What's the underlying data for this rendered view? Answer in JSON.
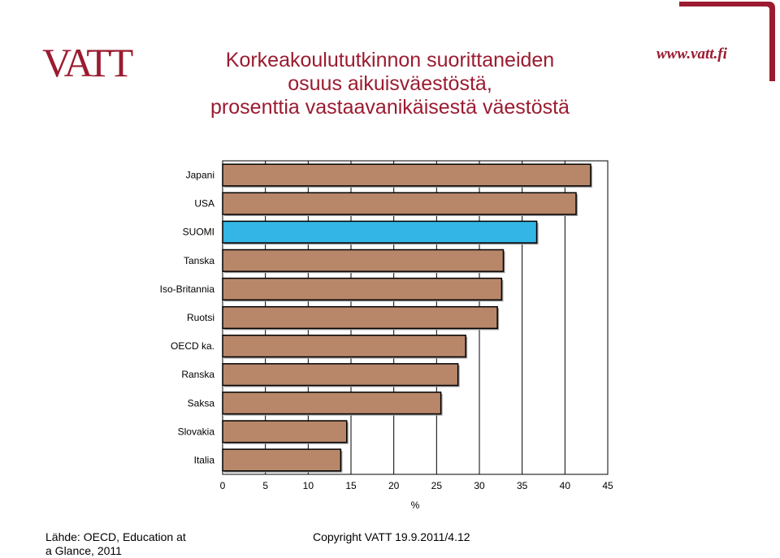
{
  "header": {
    "logo_text": "VATT",
    "title_lines": [
      "Korkeakoulututkinnon suorittaneiden",
      "osuus aikuisväestöstä,",
      "prosenttia vastaavanikäisestä väestöstä"
    ],
    "website": "www.vatt.fi"
  },
  "footer": {
    "source_line1": "Lähde: OECD, Education at",
    "source_line2": "a Glance, 2011",
    "copyright": "Copyright VATT 19.9.2011/4.12"
  },
  "colors": {
    "brand": "#9b1b30",
    "bar": "#b8876a",
    "highlight": "#33b5e5"
  },
  "chart_data": {
    "type": "bar",
    "orientation": "horizontal",
    "categories": [
      "Japani",
      "USA",
      "SUOMI",
      "Tanska",
      "Iso-Britannia",
      "Ruotsi",
      "OECD ka.",
      "Ranska",
      "Saksa",
      "Slovakia",
      "Italia"
    ],
    "values": [
      43,
      41.3,
      36.7,
      32.8,
      32.6,
      32.1,
      28.4,
      27.5,
      25.5,
      14.5,
      13.8
    ],
    "highlight_category": "SUOMI",
    "xlabel": "%",
    "ylabel": "",
    "xlim": [
      0,
      45
    ],
    "xticks": [
      0,
      5,
      10,
      15,
      20,
      25,
      30,
      35,
      40,
      45
    ],
    "grid": "vertical"
  }
}
